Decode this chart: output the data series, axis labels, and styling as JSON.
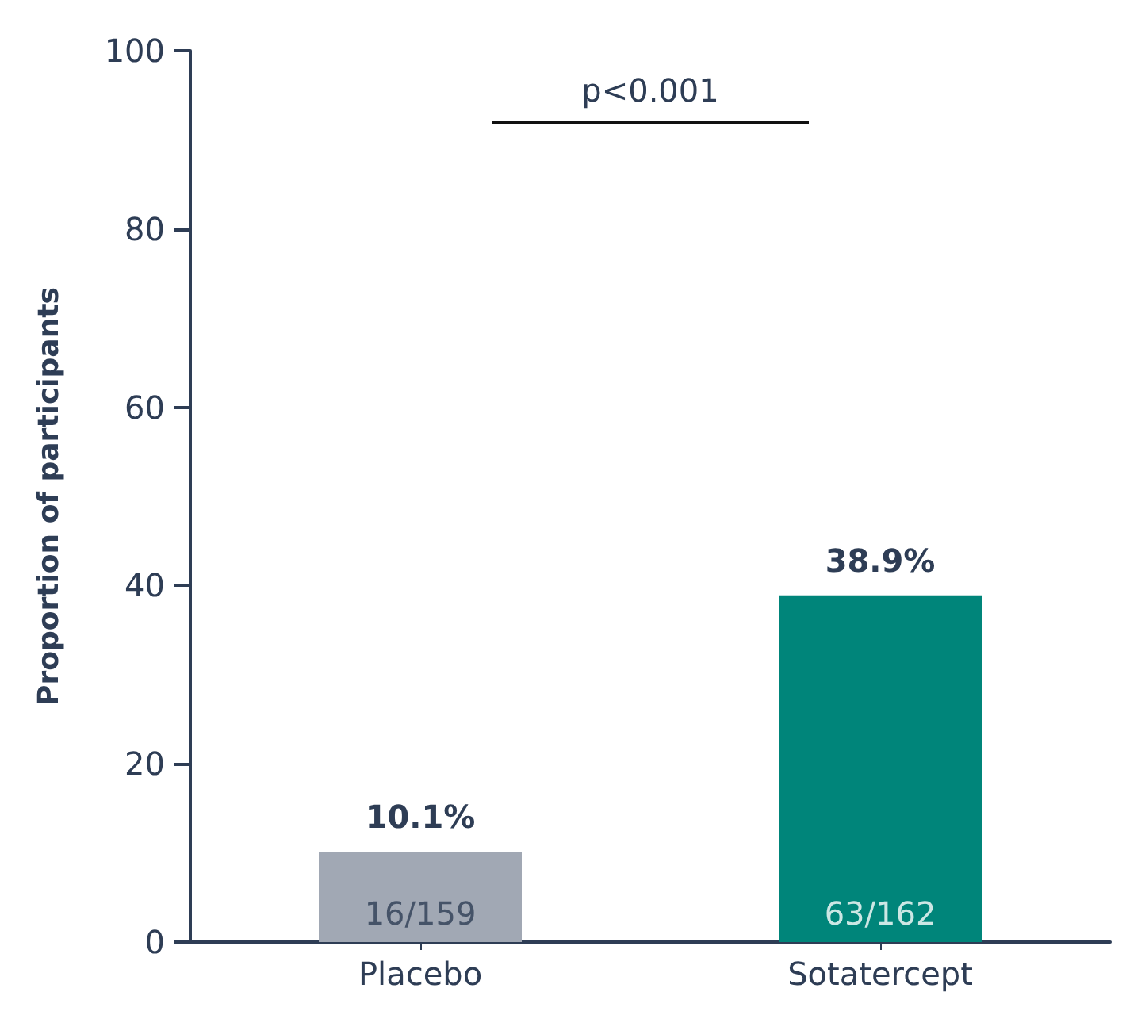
{
  "chart_data": {
    "type": "bar",
    "ylabel": "Proportion of participants",
    "categories": [
      "Placebo",
      "Sotatercept"
    ],
    "values": [
      10.1,
      38.9
    ],
    "colors": [
      "#a1a8b4",
      "#00857a"
    ],
    "value_labels": [
      "10.1%",
      "38.9%"
    ],
    "ylim": [
      0,
      100
    ],
    "yticks": [
      0,
      20,
      40,
      60,
      80,
      100
    ],
    "grid": false,
    "annotations": [
      "p<0.001",
      {
        "text": "16/159",
        "x": "Placebo",
        "y": 0
      },
      {
        "text": "63/162",
        "x": "Sotatercept",
        "y": 0
      }
    ]
  }
}
